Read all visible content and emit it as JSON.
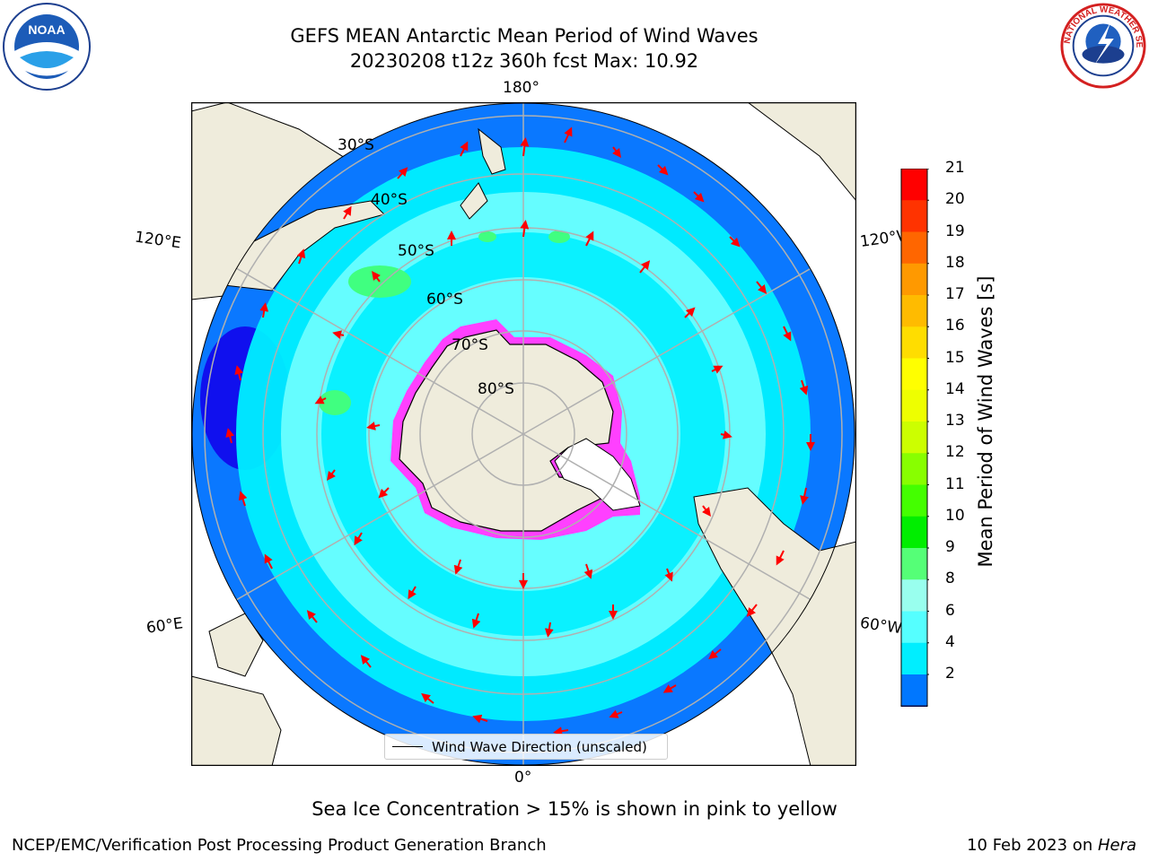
{
  "title": {
    "line1": "GEFS MEAN Antarctic Mean Period of Wind Waves",
    "line2": "20230208 t12z 360h fcst   Max: 10.92"
  },
  "map": {
    "projection": "south-polar-stereographic",
    "longitude_labels": {
      "top": "180°",
      "bottom": "0°",
      "upper_left": "120°E",
      "upper_right": "120°W",
      "lower_left": "60°E",
      "lower_right": "60°W"
    },
    "latitude_labels": [
      "30°S",
      "40°S",
      "50°S",
      "60°S",
      "70°S",
      "80°S"
    ],
    "colors": {
      "land": "#efecdc",
      "ocean_low": "#0a78ff",
      "ocean_mid": "#00f0ff",
      "ocean_light": "#70ffff",
      "ocean_green": "#40ff80",
      "deep_blue": "#1010ee",
      "sea_ice_edge": "#ff40ff",
      "arrows": "#ff0000",
      "gridlines": "#b0b0b0"
    }
  },
  "colorbar": {
    "title": "Mean Period of Wind Waves [s]",
    "ticks": [
      "21",
      "20",
      "19",
      "18",
      "17",
      "16",
      "15",
      "14",
      "13",
      "12",
      "11",
      "10",
      "9",
      "8",
      "6",
      "4",
      "2"
    ],
    "colors": [
      "#ff0000",
      "#ff3300",
      "#ff6600",
      "#ff9900",
      "#ffbb00",
      "#ffdd00",
      "#ffff00",
      "#eeff00",
      "#ccff00",
      "#88ff00",
      "#44ff00",
      "#00ee00",
      "#55ff77",
      "#99ffee",
      "#55ffff",
      "#00eeff",
      "#0077ff"
    ],
    "under_color": "#0000ff"
  },
  "legend": {
    "label": "Wind Wave Direction (unscaled)"
  },
  "note": "Sea Ice Concentration > 15% is shown in pink to yellow",
  "footer": {
    "left": "NCEP/EMC/Verification Post Processing Product Generation Branch",
    "date": "10 Feb 2023 on ",
    "machine": "Hera"
  },
  "logos": {
    "noaa": "NOAA",
    "nws": "NATIONAL WEATHER SERVICE"
  }
}
